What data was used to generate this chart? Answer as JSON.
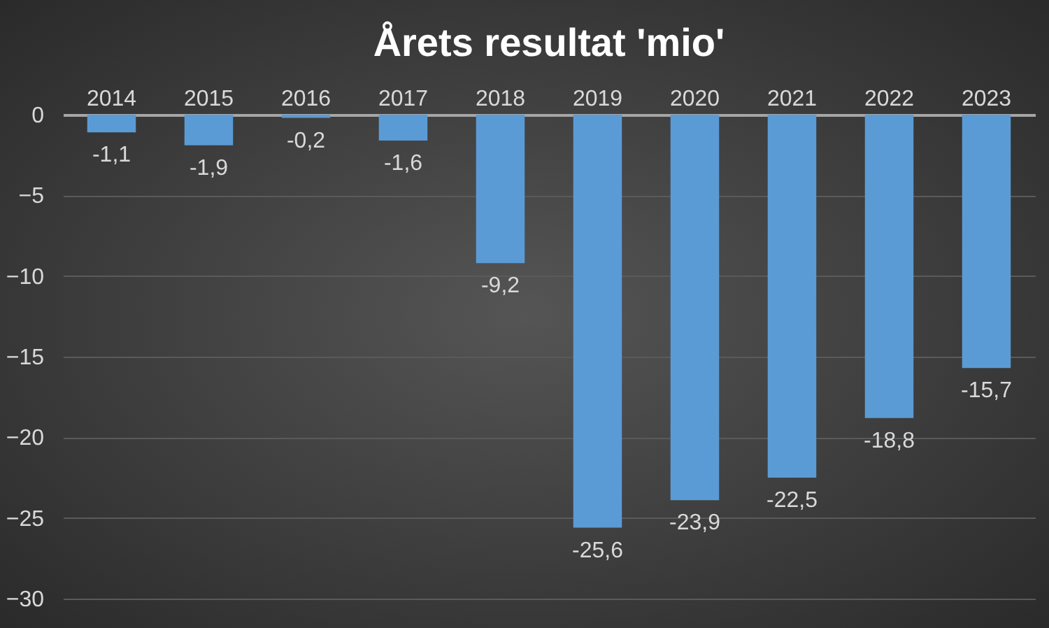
{
  "chart_data": {
    "type": "bar",
    "title": "Årets resultat 'mio'",
    "categories": [
      "2014",
      "2015",
      "2016",
      "2017",
      "2018",
      "2019",
      "2020",
      "2021",
      "2022",
      "2023"
    ],
    "values": [
      -1.1,
      -1.9,
      -0.2,
      -1.6,
      -9.2,
      -25.6,
      -23.9,
      -22.5,
      -18.8,
      -15.7
    ],
    "value_labels": [
      "-1,1",
      "-1,9",
      "-0,2",
      "-1,6",
      "-9,2",
      "-25,6",
      "-23,9",
      "-22,5",
      "-18,8",
      "-15,7"
    ],
    "color": "#5b9bd5",
    "ylim": [
      -30,
      0
    ],
    "yticks": [
      0,
      -5,
      -10,
      -15,
      -20,
      -25,
      -30
    ],
    "grid": "y"
  }
}
